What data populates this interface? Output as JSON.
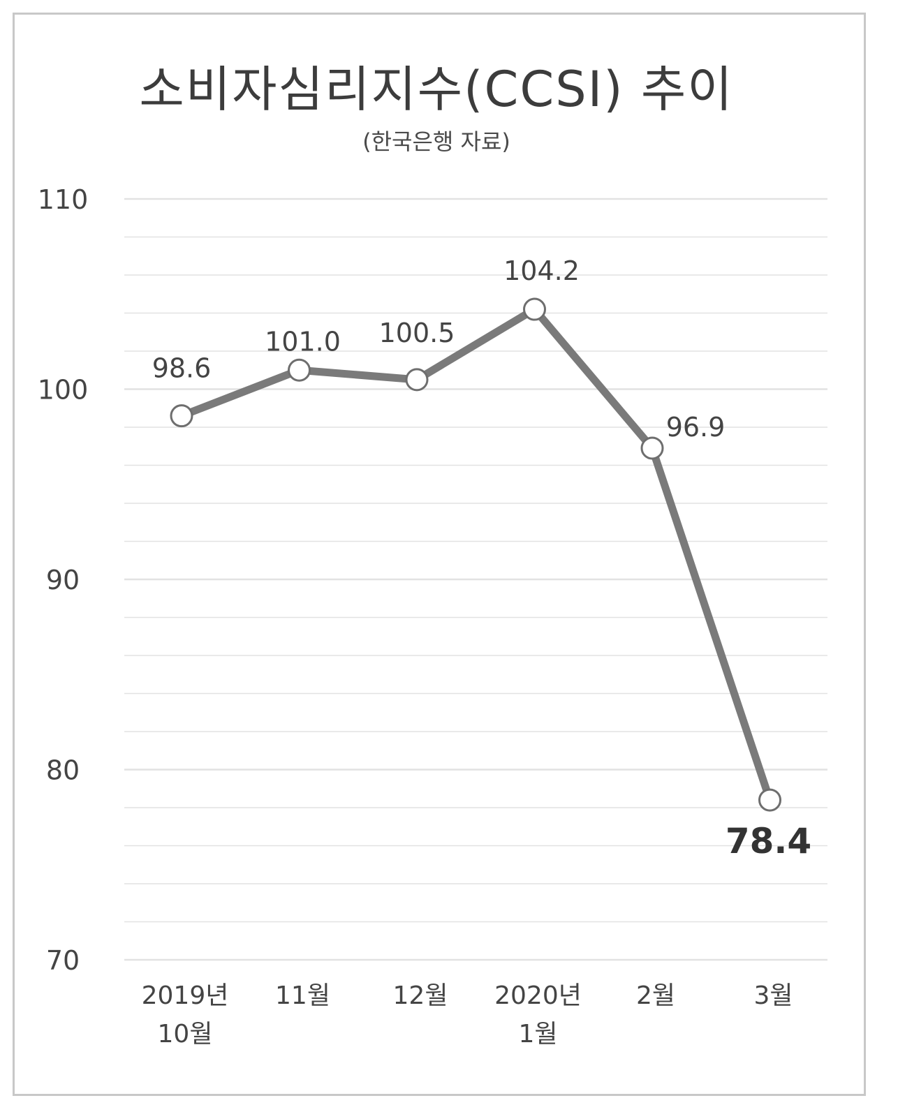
{
  "chart_data": {
    "type": "line",
    "title": "소비자심리지수(CCSI) 추이",
    "subtitle": "(한국은행 자료)",
    "xlabel": "",
    "ylabel": "",
    "categories": [
      [
        "2019년",
        "10월"
      ],
      [
        "11월"
      ],
      [
        "12월"
      ],
      [
        "2020년",
        "1월"
      ],
      [
        "2월"
      ],
      [
        "3월"
      ]
    ],
    "series": [
      {
        "values": [
          98.6,
          101.0,
          100.5,
          104.2,
          96.9,
          78.4
        ],
        "labels": [
          "98.6",
          "101.0",
          "100.5",
          "104.2",
          "96.9",
          "78.4"
        ]
      }
    ],
    "ylim": [
      70,
      110
    ],
    "yticks": [
      110,
      100,
      90,
      80,
      70
    ],
    "grid": true,
    "legend": "none",
    "colors": {
      "line": "#7a7a7a",
      "marker_fill": "#ffffff",
      "marker_stroke": "#6e6e6e",
      "gridline": "#e2e2e2",
      "text": "#444444",
      "highlight_label": "#333333"
    }
  }
}
